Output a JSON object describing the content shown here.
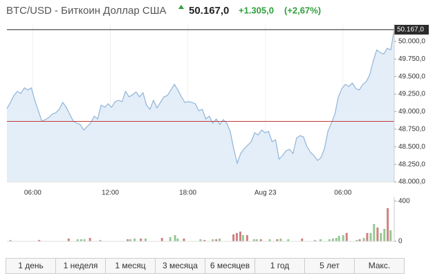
{
  "header": {
    "symbol": "BTC/USD - Биткоин Доллар США",
    "price": "50.167,0",
    "change": "+1.305,0",
    "change_pct": "(+2,67%)"
  },
  "chart_data": [
    {
      "type": "area",
      "color": "#8fb4d9",
      "area_color": "#e4eef8",
      "reference_color": "#c0393b",
      "previous_close": 48862,
      "last_price_label": "50.167,0",
      "xlim": [
        4,
        33.97
      ],
      "ylim": [
        48000,
        50250
      ],
      "xticks": [
        {
          "value": 6,
          "label": "06:00"
        },
        {
          "value": 12,
          "label": "12:00"
        },
        {
          "value": 18,
          "label": "18:00"
        },
        {
          "value": 24,
          "label": "Aug 23"
        },
        {
          "value": 30,
          "label": "06:00"
        }
      ],
      "yticks": [
        {
          "value": 48000,
          "label": "48.000,0"
        },
        {
          "value": 48250,
          "label": "48.250,0"
        },
        {
          "value": 48500,
          "label": "48.500,0"
        },
        {
          "value": 48750,
          "label": "48.750,0"
        },
        {
          "value": 49000,
          "label": "49.000,0"
        },
        {
          "value": 49250,
          "label": "49.250,0"
        },
        {
          "value": 49500,
          "label": "49.500,0"
        },
        {
          "value": 49750,
          "label": "49.750,0"
        },
        {
          "value": 50000,
          "label": "50.000,0"
        }
      ],
      "series": [
        {
          "color": "#8fb4d9",
          "x": [
            4,
            4.27,
            4.54,
            4.81,
            5.08,
            5.35,
            5.62,
            5.89,
            6.16,
            6.43,
            6.7,
            6.97,
            7.24,
            7.51,
            7.78,
            8.05,
            8.32,
            8.59,
            8.86,
            9.13,
            9.4,
            9.67,
            9.94,
            10.21,
            10.48,
            10.75,
            11.02,
            11.29,
            11.56,
            11.83,
            12.1,
            12.37,
            12.64,
            12.91,
            13.18,
            13.45,
            13.72,
            13.99,
            14.26,
            14.53,
            14.8,
            15.07,
            15.34,
            15.61,
            15.88,
            16.15,
            16.42,
            16.69,
            16.96,
            17.23,
            17.5,
            17.77,
            18.04,
            18.31,
            18.58,
            18.85,
            19.12,
            19.39,
            19.66,
            19.93,
            20.2,
            20.47,
            20.74,
            21.01,
            21.28,
            21.55,
            21.82,
            22.09,
            22.36,
            22.63,
            22.9,
            23.17,
            23.44,
            23.71,
            23.98,
            24.25,
            24.52,
            24.79,
            25.06,
            25.33,
            25.6,
            25.87,
            26.14,
            26.41,
            26.68,
            26.95,
            27.22,
            27.49,
            27.76,
            28.03,
            28.3,
            28.57,
            28.84,
            29.11,
            29.38,
            29.65,
            29.92,
            30.19,
            30.46,
            30.73,
            31,
            31.27,
            31.54,
            31.81,
            32.08,
            32.35,
            32.62,
            32.89,
            33.16,
            33.43,
            33.7,
            33.97
          ],
          "values": [
            49043,
            49132,
            49230,
            49289,
            49260,
            49339,
            49309,
            49339,
            49161,
            49014,
            48866,
            48886,
            48915,
            48965,
            48984,
            49034,
            49132,
            49063,
            48965,
            48866,
            48837,
            48817,
            48738,
            48787,
            48837,
            48935,
            48896,
            49093,
            49063,
            49112,
            49063,
            49142,
            49161,
            49142,
            49289,
            49211,
            49240,
            49280,
            49211,
            49270,
            49093,
            49034,
            49161,
            49053,
            49132,
            49211,
            49230,
            49309,
            49388,
            49309,
            49211,
            49132,
            49142,
            49132,
            49112,
            49014,
            49034,
            48896,
            48935,
            48837,
            48896,
            48817,
            48886,
            48837,
            48719,
            48472,
            48266,
            48404,
            48472,
            48522,
            48571,
            48699,
            48669,
            48738,
            48699,
            48719,
            48571,
            48600,
            48325,
            48374,
            48443,
            48463,
            48404,
            48620,
            48659,
            48640,
            48502,
            48423,
            48374,
            48305,
            48345,
            48472,
            48719,
            48837,
            48965,
            49211,
            49329,
            49388,
            49358,
            49408,
            49329,
            49309,
            49388,
            49427,
            49526,
            49723,
            49880,
            49841,
            49821,
            49900,
            49880,
            50167
          ]
        }
      ]
    },
    {
      "type": "bar",
      "xlim": [
        4,
        33.97
      ],
      "ylim": [
        0,
        440
      ],
      "yticks": [
        0,
        400
      ],
      "series": [
        {
          "color": "#94c894",
          "x": [
            4.27,
            9.47,
            9.74,
            10.0,
            11.22,
            13.56,
            13.88,
            14.73,
            16.64,
            17.01,
            17.22,
            18.98,
            19.93,
            20.46,
            22.27,
            23.12,
            23.33,
            24.34,
            25.19,
            25.77,
            27.84,
            28.27,
            28.96,
            29.23,
            29.49,
            29.7,
            30.02,
            31.08,
            31.62,
            32.15,
            32.41,
            32.94,
            33.21,
            33.69
          ],
          "values": [
            14,
            21,
            21,
            21,
            14,
            21,
            28,
            28,
            41,
            62,
            28,
            21,
            21,
            28,
            62,
            21,
            21,
            21,
            28,
            21,
            14,
            21,
            21,
            28,
            34,
            55,
            62,
            14,
            34,
            83,
            172,
            83,
            124,
            110
          ]
        },
        {
          "color": "#d08080",
          "x": [
            6.5,
            8.78,
            10.43,
            13.35,
            14.36,
            16.0,
            17.7,
            19.29,
            20.2,
            21.53,
            21.79,
            22.06,
            22.59,
            23.65,
            24.92,
            26.84,
            30.29,
            31.3,
            31.88,
            32.68,
            33.47
          ],
          "values": [
            14,
            28,
            34,
            21,
            28,
            34,
            28,
            14,
            21,
            69,
            83,
            97,
            62,
            21,
            21,
            28,
            83,
            21,
            83,
            138,
            331
          ]
        }
      ]
    }
  ],
  "ranges": [
    "1 день",
    "1 неделя",
    "1 месяц",
    "3 месяца",
    "6 месяцев",
    "1 год",
    "5 лет",
    "Макс."
  ]
}
